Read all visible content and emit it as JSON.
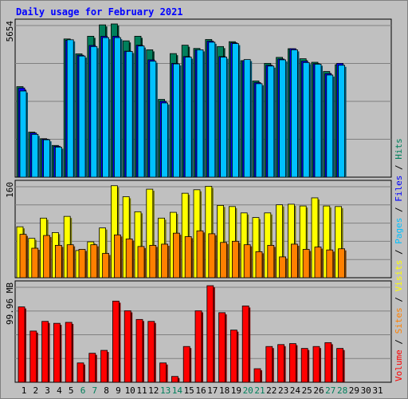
{
  "title": "Daily usage for February 2021",
  "colors": {
    "background": "#c0c0c0",
    "hits": "#00805c",
    "files": "#0000ff",
    "pages": "#00c0ff",
    "visits": "#ffff00",
    "sites": "#ff8000",
    "volume": "#ff0000",
    "weekend_label": "#00805c",
    "weekday_label": "#000000"
  },
  "chart_data": [
    {
      "type": "bar",
      "panel": "top",
      "max_label": "5654",
      "ylim": [
        0,
        5654
      ],
      "x": [
        1,
        2,
        3,
        4,
        5,
        6,
        7,
        8,
        9,
        10,
        11,
        12,
        13,
        14,
        15,
        16,
        17,
        18,
        19,
        20,
        21,
        22,
        23,
        24,
        25,
        26,
        27,
        28,
        29,
        30,
        31
      ],
      "series": [
        {
          "name": "Hits",
          "values": [
            3340,
            1660,
            1420,
            1170,
            5100,
            4550,
            5200,
            5620,
            5654,
            5030,
            5200,
            4700,
            2870,
            4560,
            4870,
            4750,
            5080,
            4820,
            5000,
            4300,
            3550,
            4200,
            4420,
            4740,
            4370,
            4240,
            3900,
            4150,
            0,
            0,
            0
          ]
        },
        {
          "name": "Files",
          "values": [
            3290,
            1630,
            1400,
            1140,
            5050,
            4500,
            4860,
            5200,
            5200,
            4650,
            4870,
            4330,
            2800,
            4200,
            4450,
            4700,
            5020,
            4450,
            4960,
            4300,
            3490,
            4130,
            4360,
            4740,
            4280,
            4190,
            3820,
            4200,
            0,
            0,
            0
          ]
        },
        {
          "name": "Pages",
          "values": [
            3180,
            1580,
            1380,
            1110,
            5070,
            4470,
            4820,
            5150,
            5150,
            4640,
            4840,
            4280,
            2740,
            4180,
            4430,
            4700,
            4980,
            4430,
            4930,
            4340,
            3450,
            4100,
            4330,
            4700,
            4230,
            4170,
            3770,
            4130,
            0,
            0,
            0
          ]
        }
      ]
    },
    {
      "type": "bar",
      "panel": "middle",
      "max_label": "160",
      "ylim": [
        0,
        160
      ],
      "x": [
        1,
        2,
        3,
        4,
        5,
        6,
        7,
        8,
        9,
        10,
        11,
        12,
        13,
        14,
        15,
        16,
        17,
        18,
        19,
        20,
        21,
        22,
        23,
        24,
        25,
        26,
        27,
        28,
        29,
        30,
        31
      ],
      "series": [
        {
          "name": "Visits",
          "values": [
            88,
            68,
            103,
            78,
            106,
            47,
            62,
            86,
            159,
            140,
            114,
            153,
            103,
            113,
            146,
            152,
            158,
            125,
            123,
            112,
            104,
            112,
            126,
            127,
            124,
            138,
            124,
            123,
            0,
            0,
            0
          ]
        },
        {
          "name": "Sites",
          "values": [
            75,
            51,
            73,
            56,
            57,
            49,
            57,
            42,
            74,
            67,
            54,
            56,
            58,
            77,
            71,
            81,
            76,
            61,
            63,
            57,
            45,
            56,
            36,
            58,
            49,
            53,
            48,
            50,
            0,
            0,
            0
          ]
        }
      ]
    },
    {
      "type": "bar",
      "panel": "bottom",
      "max_label": "99.96 MB",
      "ylim": [
        0,
        99.96
      ],
      "x": [
        1,
        2,
        3,
        4,
        5,
        6,
        7,
        8,
        9,
        10,
        11,
        12,
        13,
        14,
        15,
        16,
        17,
        18,
        19,
        20,
        21,
        22,
        23,
        24,
        25,
        26,
        27,
        28,
        29,
        30,
        31
      ],
      "series": [
        {
          "name": "Volume",
          "values": [
            78,
            53,
            63,
            61,
            62,
            20,
            30,
            33,
            84,
            74,
            65,
            63,
            20,
            6,
            37,
            74,
            99.96,
            72,
            54,
            79,
            14,
            37,
            39,
            40,
            35,
            37,
            41,
            35,
            0,
            0,
            0
          ]
        }
      ]
    }
  ],
  "weekend_days": [
    6,
    7,
    13,
    14,
    20,
    21,
    27,
    28
  ],
  "right_legend": [
    {
      "text": "Volume",
      "color_key": "volume"
    },
    {
      "text": " / ",
      "color_key": "weekday_label"
    },
    {
      "text": "Sites",
      "color_key": "sites"
    },
    {
      "text": " / ",
      "color_key": "weekday_label"
    },
    {
      "text": "Visits",
      "color_key": "visits"
    },
    {
      "text": " / ",
      "color_key": "weekday_label"
    },
    {
      "text": "Pages",
      "color_key": "pages"
    },
    {
      "text": " / ",
      "color_key": "weekday_label"
    },
    {
      "text": "Files",
      "color_key": "files"
    },
    {
      "text": " / ",
      "color_key": "weekday_label"
    },
    {
      "text": "Hits",
      "color_key": "hits"
    }
  ]
}
